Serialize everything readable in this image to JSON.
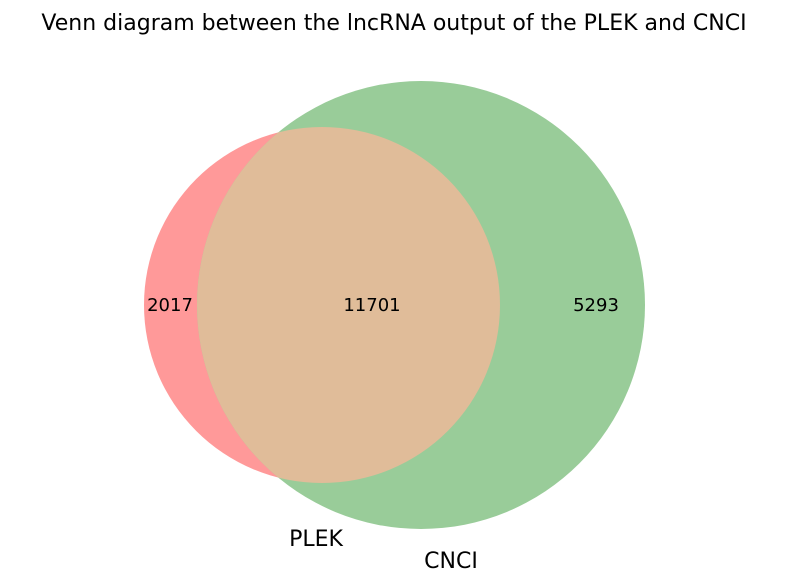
{
  "chart_data": {
    "type": "venn",
    "title": "Venn diagram between the lncRNA output of the PLEK and CNCI",
    "sets": [
      {
        "name": "PLEK",
        "color": "#ff9999",
        "only_count": "2017"
      },
      {
        "name": "CNCI",
        "color": "#99cc99",
        "only_count": "5293"
      }
    ],
    "intersection": {
      "sets": [
        "PLEK",
        "CNCI"
      ],
      "count": "11701",
      "color": "#e0bc99"
    }
  }
}
